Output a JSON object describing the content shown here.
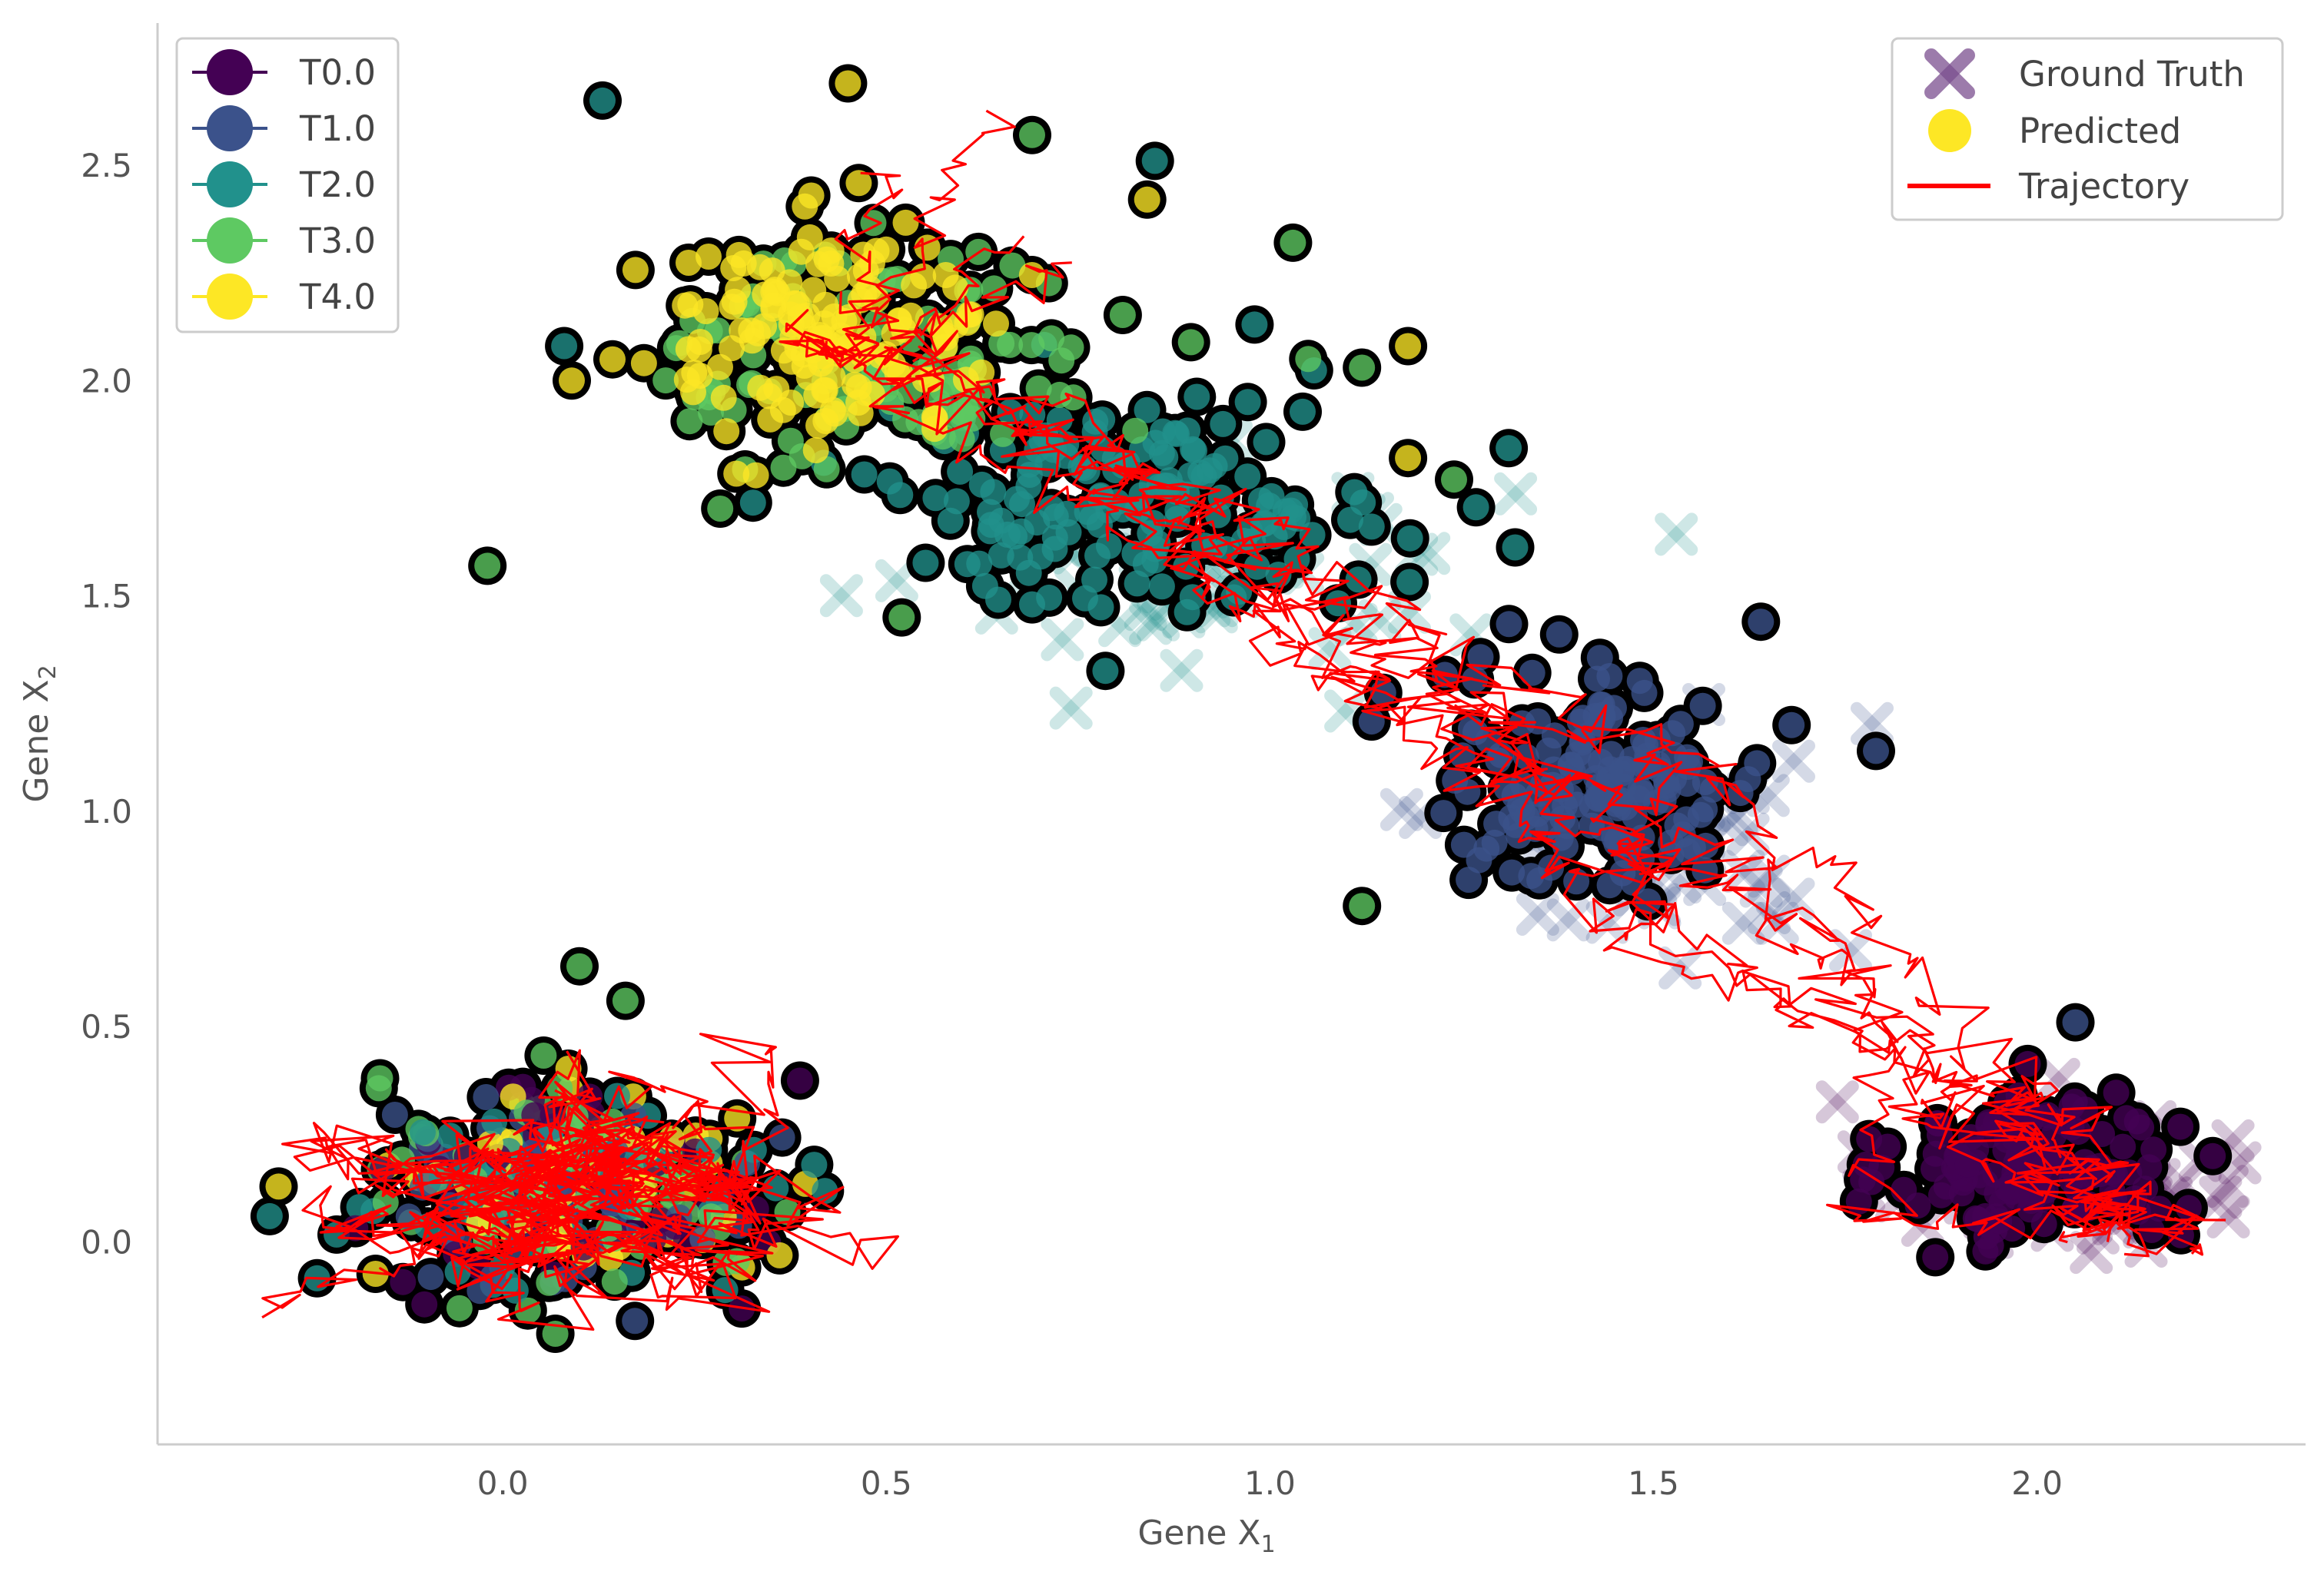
{
  "chart_data": {
    "type": "scatter",
    "title": "",
    "xlabel": "Gene X",
    "xlabel_sub": "1",
    "ylabel": "Gene X",
    "ylabel_sub": "2",
    "xlim": [
      -0.45,
      2.35
    ],
    "ylim": [
      -0.47,
      2.83
    ],
    "xticks": [
      0.0,
      0.5,
      1.0,
      1.5,
      2.0
    ],
    "xtick_labels": [
      "0.0",
      "0.5",
      "1.0",
      "1.5",
      "2.0"
    ],
    "yticks": [
      0.0,
      0.5,
      1.0,
      1.5,
      2.0,
      2.5
    ],
    "ytick_labels": [
      "0.0",
      "0.5",
      "1.0",
      "1.5",
      "2.0",
      "2.5"
    ],
    "grid": false,
    "time_legend": {
      "placement": "top-left",
      "entries": [
        {
          "label": "T0.0",
          "color": "#440154"
        },
        {
          "label": "T1.0",
          "color": "#3b528b"
        },
        {
          "label": "T2.0",
          "color": "#21918c"
        },
        {
          "label": "T3.0",
          "color": "#5ec962"
        },
        {
          "label": "T4.0",
          "color": "#fde725"
        }
      ]
    },
    "marker_legend": {
      "placement": "top-right",
      "entries": [
        {
          "label": "Ground Truth",
          "marker": "x",
          "color": "#7b4f8f"
        },
        {
          "label": "Predicted",
          "marker": "circle",
          "color": "#fde725"
        },
        {
          "label": "Trajectory",
          "marker": "line",
          "color": "#ff0000"
        }
      ]
    },
    "clusters": [
      {
        "name": "T0.0",
        "color": "#440154",
        "center": [
          2.0,
          0.17
        ],
        "spread": [
          0.09,
          0.09
        ],
        "count": 150
      },
      {
        "name": "T1.0",
        "color": "#3b528b",
        "center": [
          1.43,
          1.07
        ],
        "spread": [
          0.11,
          0.13
        ],
        "count": 160
      },
      {
        "name": "T2.0",
        "color": "#21918c",
        "center": [
          0.82,
          1.72
        ],
        "spread": [
          0.17,
          0.12
        ],
        "count": 170
      },
      {
        "name": "T3.0",
        "color": "#5ec962",
        "center": [
          0.5,
          2.05
        ],
        "spread": [
          0.14,
          0.14
        ],
        "count": 110
      },
      {
        "name": "T4.0",
        "color": "#fde725",
        "center": [
          0.42,
          2.12
        ],
        "spread": [
          0.12,
          0.12
        ],
        "count": 150
      },
      {
        "name": "T0.0-T4.0",
        "color": "mixed",
        "center": [
          0.08,
          0.12
        ],
        "spread": [
          0.13,
          0.12
        ],
        "count": 330
      }
    ],
    "ground_truth_clusters": [
      {
        "color": "#440154",
        "center": [
          2.03,
          0.15
        ],
        "spread": [
          0.12,
          0.09
        ],
        "count": 60
      },
      {
        "color": "#3b528b",
        "center": [
          1.5,
          0.95
        ],
        "spread": [
          0.14,
          0.15
        ],
        "count": 55
      },
      {
        "color": "#21918c",
        "center": [
          0.95,
          1.55
        ],
        "spread": [
          0.18,
          0.12
        ],
        "count": 55
      }
    ],
    "outliers": [
      [
        0.13,
        2.65
      ],
      [
        0.45,
        2.69
      ],
      [
        0.69,
        2.57
      ],
      [
        0.85,
        2.51
      ],
      [
        0.84,
        2.42
      ],
      [
        1.03,
        2.32
      ],
      [
        0.98,
        2.13
      ],
      [
        1.18,
        2.08
      ],
      [
        1.12,
        2.03
      ],
      [
        0.08,
        2.08
      ],
      [
        0.09,
        2.0
      ],
      [
        -0.02,
        1.57
      ],
      [
        0.52,
        1.45
      ],
      [
        1.18,
        1.82
      ],
      [
        1.24,
        1.77
      ],
      [
        1.64,
        1.44
      ],
      [
        1.79,
        1.14
      ],
      [
        1.12,
        0.78
      ],
      [
        0.1,
        0.64
      ],
      [
        0.16,
        0.56
      ],
      [
        -0.16,
        0.38
      ],
      [
        2.05,
        0.51
      ],
      [
        0.33,
        1.78
      ],
      [
        1.05,
        2.05
      ],
      [
        1.68,
        1.2
      ]
    ],
    "trajectories": {
      "color": "#ff0000",
      "count": 12,
      "endpoints": [
        [
          0.66,
          2.65
        ],
        [
          0.5,
          2.52
        ],
        [
          0.75,
          2.28
        ],
        [
          0.4,
          2.1
        ],
        [
          -0.33,
          -0.17
        ]
      ]
    }
  }
}
